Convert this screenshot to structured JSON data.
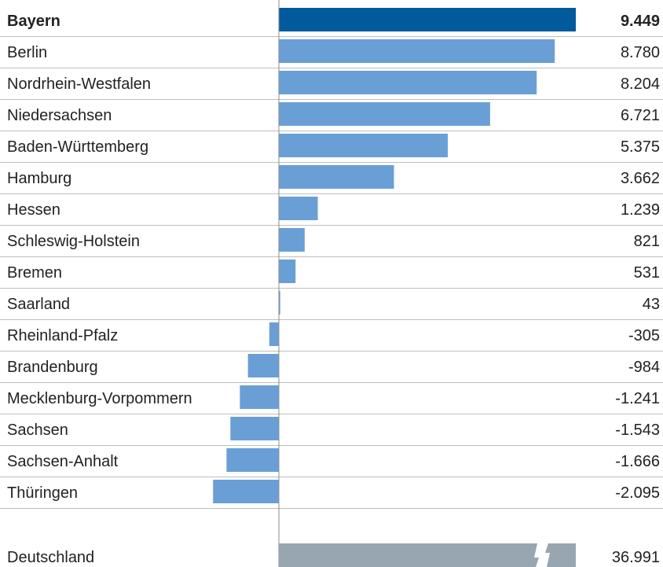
{
  "chart_data": {
    "type": "bar",
    "orientation": "horizontal",
    "categories": [
      "Bayern",
      "Berlin",
      "Nordrhein-Westfalen",
      "Niedersachsen",
      "Baden-Württemberg",
      "Hamburg",
      "Hessen",
      "Schleswig-Holstein",
      "Bremen",
      "Saarland",
      "Rheinland-Pfalz",
      "Brandenburg",
      "Mecklenburg-Vorpommern",
      "Sachsen",
      "Sachsen-Anhalt",
      "Thüringen"
    ],
    "values": [
      9449,
      8780,
      8204,
      6721,
      5375,
      3662,
      1239,
      821,
      531,
      43,
      -305,
      -984,
      -1241,
      -1543,
      -1666,
      -2095
    ],
    "value_labels": [
      "9.449",
      "8.780",
      "8.204",
      "6.721",
      "5.375",
      "3.662",
      "1.239",
      "821",
      "531",
      "43",
      "-305",
      "-984",
      "-1.241",
      "-1.543",
      "-1.666",
      "-2.095"
    ],
    "highlight": "Bayern",
    "total": {
      "label": "Deutschland",
      "value": 36991,
      "value_label": "36.991",
      "axis_break": true
    },
    "colors": {
      "highlight": "#005a9b",
      "bar": "#6a9fd6",
      "total": "#98a6b1"
    },
    "grid": false
  }
}
